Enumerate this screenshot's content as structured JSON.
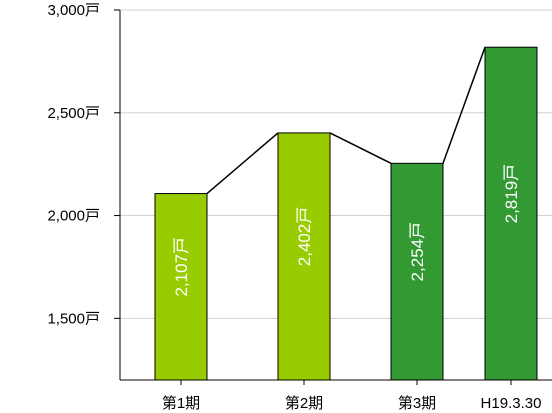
{
  "chart_data": {
    "type": "bar",
    "categories": [
      "第1期",
      "第2期",
      "第3期",
      "H19.3.30"
    ],
    "values": [
      2107,
      2402,
      2254,
      2819
    ],
    "value_labels": [
      "2,107戸",
      "2,402戸",
      "2,254戸",
      "2,819戸"
    ],
    "bar_colors": [
      "#99cc00",
      "#99cc00",
      "#339933",
      "#339933"
    ],
    "connector_line": true,
    "ylim": [
      1200,
      3000
    ],
    "y_ticks": [
      1500,
      2000,
      2500,
      3000
    ],
    "y_tick_labels": [
      "1,500戸",
      "2,000戸",
      "2,500戸",
      "3,000戸"
    ],
    "grid": "horizontal",
    "title": "",
    "xlabel": "",
    "ylabel": ""
  }
}
